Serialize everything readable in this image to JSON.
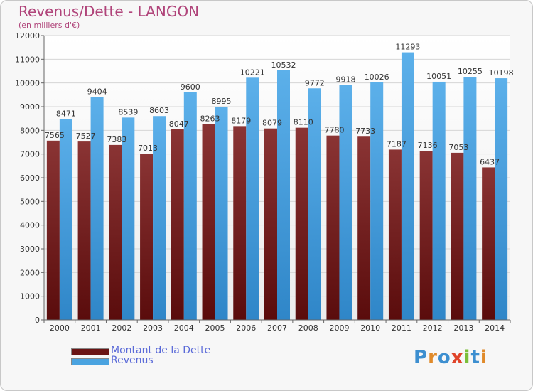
{
  "title": "Revenus/Dette - LANGON",
  "subtitle": "(en milliers d'€)",
  "legend": {
    "debt_label": "Montant de la Dette",
    "revenue_label": "Revenus"
  },
  "logo_text": "Proxiti",
  "colors": {
    "debt": "#7a2424",
    "revenue": "#4aa3e0",
    "title": "#b0447a"
  },
  "chart_data": {
    "type": "bar",
    "categories": [
      "2000",
      "2001",
      "2002",
      "2003",
      "2004",
      "2005",
      "2006",
      "2007",
      "2008",
      "2009",
      "2010",
      "2011",
      "2012",
      "2013",
      "2014"
    ],
    "series": [
      {
        "name": "Montant de la Dette",
        "values": [
          7565,
          7527,
          7383,
          7013,
          8047,
          8263,
          8179,
          8079,
          8110,
          7780,
          7733,
          7187,
          7136,
          7053,
          6437
        ]
      },
      {
        "name": "Revenus",
        "values": [
          8471,
          9404,
          8539,
          8603,
          9600,
          8995,
          10221,
          10532,
          9772,
          9918,
          10026,
          11293,
          10051,
          10255,
          10198
        ]
      }
    ],
    "debt_value_labels": [
      "7565",
      "7527",
      "7383",
      "7013",
      "8047",
      "8263",
      "8179",
      "8079",
      "8110",
      "7780",
      "7733",
      "7187",
      "7136",
      "7053",
      "6437"
    ],
    "ylim": [
      0,
      12000
    ],
    "yticks": [
      0,
      1000,
      2000,
      3000,
      4000,
      5000,
      6000,
      7000,
      8000,
      9000,
      10000,
      11000,
      12000
    ],
    "grid": true,
    "legend_position": "bottom-left"
  }
}
